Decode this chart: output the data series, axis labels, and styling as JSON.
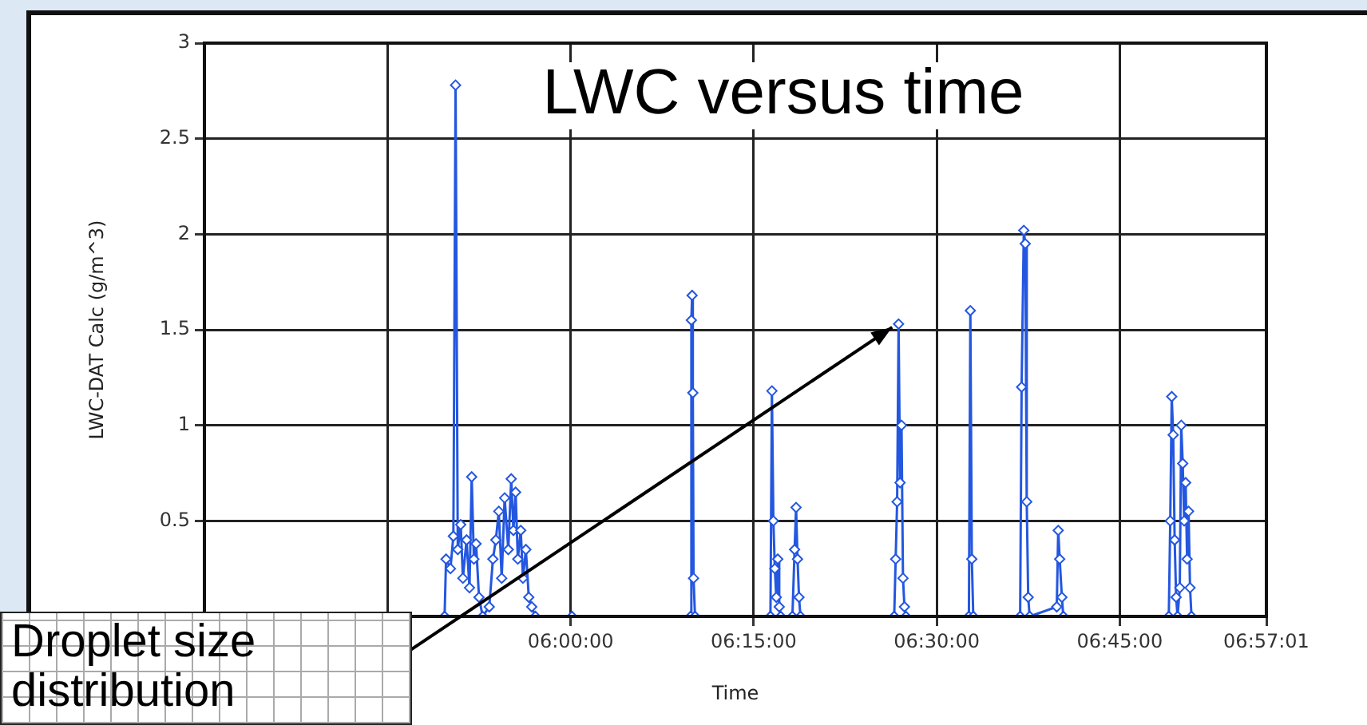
{
  "chart_data": {
    "type": "line",
    "title": "LWC versus time",
    "xlabel": "Time",
    "ylabel": "LWC-DAT Calc (g/m^3)",
    "annotations": [
      {
        "text": "Droplet size distribution",
        "x": 6.448,
        "y": 1.53
      }
    ],
    "xlim": [
      5.5,
      6.950278
    ],
    "ylim": [
      0,
      3
    ],
    "xticks": [
      {
        "value": 5.5,
        "label": null
      },
      {
        "value": 5.75,
        "label": null
      },
      {
        "value": 6,
        "label": "06:00:00"
      },
      {
        "value": 6.25,
        "label": "06:15:00"
      },
      {
        "value": 6.5,
        "label": "06:30:00"
      },
      {
        "value": 6.75,
        "label": "06:45:00"
      },
      {
        "value": 6.950278,
        "label": "06:57:01"
      }
    ],
    "yticks": [
      {
        "value": 0,
        "label": null
      },
      0.5,
      1,
      1.5,
      2,
      2.5,
      3
    ],
    "grid": true,
    "legend": false,
    "marker": "diamond",
    "line_style": "solid",
    "series": [
      {
        "color": "#2457e0",
        "x": [
          5.828,
          5.83,
          5.836,
          5.84,
          5.843,
          5.846,
          5.85,
          5.853,
          5.858,
          5.862,
          5.865,
          5.868,
          5.871,
          5.875,
          5.88,
          5.889,
          5.894,
          5.898,
          5.902,
          5.906,
          5.91,
          5.915,
          5.919,
          5.922,
          5.925,
          5.928,
          5.932,
          5.935,
          5.939,
          5.943,
          5.947,
          5.952,
          6.002,
          6.164,
          6.165,
          6.166,
          6.167,
          6.168,
          6.17,
          6.273,
          6.275,
          6.277,
          6.279,
          6.281,
          6.283,
          6.285,
          6.287,
          6.303,
          6.306,
          6.308,
          6.31,
          6.312,
          6.314,
          6.442,
          6.444,
          6.446,
          6.448,
          6.45,
          6.452,
          6.454,
          6.456,
          6.458,
          6.544,
          6.546,
          6.548,
          6.55,
          6.614,
          6.616,
          6.619,
          6.621,
          6.623,
          6.625,
          6.627,
          6.664,
          6.666,
          6.668,
          6.671,
          6.673,
          6.817,
          6.819,
          6.821,
          6.823,
          6.825,
          6.827,
          6.829,
          6.832,
          6.834,
          6.836,
          6.838,
          6.84,
          6.842,
          6.844,
          6.846,
          6.848
        ],
        "values": [
          0,
          0.3,
          0.25,
          0.42,
          2.78,
          0.35,
          0.48,
          0.2,
          0.4,
          0.15,
          0.73,
          0.3,
          0.38,
          0.1,
          0,
          0.05,
          0.3,
          0.4,
          0.55,
          0.2,
          0.62,
          0.35,
          0.72,
          0.45,
          0.65,
          0.3,
          0.45,
          0.2,
          0.35,
          0.1,
          0.05,
          0,
          0,
          0,
          1.55,
          1.68,
          1.17,
          0.2,
          0,
          0,
          1.18,
          0.5,
          0.25,
          0.1,
          0.3,
          0.05,
          0,
          0,
          0.35,
          0.57,
          0.3,
          0.1,
          0,
          0,
          0.3,
          0.6,
          1.53,
          0.7,
          1.0,
          0.2,
          0.05,
          0,
          0,
          1.6,
          0.3,
          0,
          0,
          1.2,
          2.02,
          1.95,
          0.6,
          0.1,
          0,
          0.05,
          0.45,
          0.3,
          0.1,
          0,
          0,
          0.5,
          1.15,
          0.95,
          0.4,
          0.1,
          0,
          0.15,
          1.0,
          0.8,
          0.5,
          0.7,
          0.3,
          0.55,
          0.15,
          0
        ]
      }
    ]
  }
}
